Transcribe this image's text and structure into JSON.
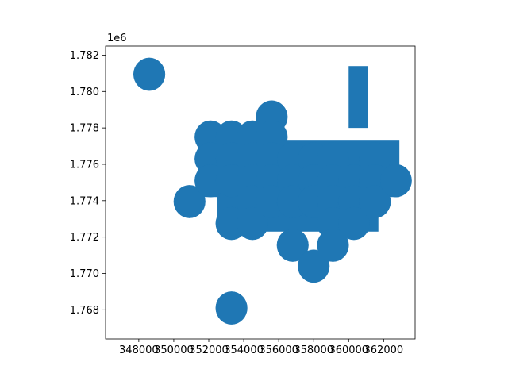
{
  "chart_data": {
    "type": "scatter",
    "title": "",
    "xlabel": "",
    "ylabel": "",
    "xlim": [
      346100,
      363800
    ],
    "ylim": [
      1766400,
      1782500
    ],
    "y_offset_label": "1e6",
    "x_ticks": [
      348000,
      350000,
      352000,
      354000,
      356000,
      358000,
      360000,
      362000
    ],
    "x_tick_labels": [
      "348000",
      "350000",
      "352000",
      "354000",
      "356000",
      "358000",
      "360000",
      "362000"
    ],
    "y_ticks": [
      1768000,
      1770000,
      1772000,
      1774000,
      1776000,
      1778000,
      1780000,
      1782000
    ],
    "y_tick_labels": [
      "1.768",
      "1.770",
      "1.772",
      "1.774",
      "1.776",
      "1.778",
      "1.780",
      "1.782"
    ],
    "grid": false,
    "legend": "none",
    "color": "#1f77b4",
    "buffer_radius": 900,
    "series": [
      {
        "values": [
          {
            "x": 348600,
            "y": 1780950
          },
          {
            "x": 350900,
            "y": 1773950
          },
          {
            "x": 352100,
            "y": 1777500
          },
          {
            "x": 352100,
            "y": 1776300
          },
          {
            "x": 352100,
            "y": 1775100
          },
          {
            "x": 353300,
            "y": 1777500
          },
          {
            "x": 353300,
            "y": 1776300
          },
          {
            "x": 353300,
            "y": 1775100
          },
          {
            "x": 353300,
            "y": 1772750
          },
          {
            "x": 353300,
            "y": 1768100
          },
          {
            "x": 354500,
            "y": 1777500
          },
          {
            "x": 354500,
            "y": 1776300
          },
          {
            "x": 354500,
            "y": 1775100
          },
          {
            "x": 354500,
            "y": 1773950
          },
          {
            "x": 354500,
            "y": 1772750
          },
          {
            "x": 355600,
            "y": 1778600
          },
          {
            "x": 355600,
            "y": 1777500
          },
          {
            "x": 355600,
            "y": 1776300
          },
          {
            "x": 355600,
            "y": 1775100
          },
          {
            "x": 355600,
            "y": 1773950
          },
          {
            "x": 356800,
            "y": 1776300
          },
          {
            "x": 356800,
            "y": 1775100
          },
          {
            "x": 356800,
            "y": 1773950
          },
          {
            "x": 356800,
            "y": 1771550
          },
          {
            "x": 358000,
            "y": 1776300
          },
          {
            "x": 358000,
            "y": 1775100
          },
          {
            "x": 358000,
            "y": 1773950
          },
          {
            "x": 358000,
            "y": 1770400
          },
          {
            "x": 359100,
            "y": 1776300
          },
          {
            "x": 359100,
            "y": 1775100
          },
          {
            "x": 359100,
            "y": 1773950
          },
          {
            "x": 359100,
            "y": 1772750
          },
          {
            "x": 359100,
            "y": 1771550
          },
          {
            "x": 360300,
            "y": 1775100
          },
          {
            "x": 360300,
            "y": 1773950
          },
          {
            "x": 360300,
            "y": 1772750
          },
          {
            "x": 361500,
            "y": 1776300
          },
          {
            "x": 361500,
            "y": 1775100
          },
          {
            "x": 361500,
            "y": 1773950
          },
          {
            "x": 362700,
            "y": 1775100
          }
        ]
      }
    ],
    "rectangles": [
      {
        "x0": 351400,
        "x1": 362900,
        "y0": 1774200,
        "y1": 1777300
      },
      {
        "x0": 352500,
        "y0": 1772300,
        "x1": 361700,
        "y1": 1775500
      },
      {
        "x0": 360000,
        "x1": 361100,
        "y0": 1778000,
        "y1": 1781400
      }
    ]
  }
}
